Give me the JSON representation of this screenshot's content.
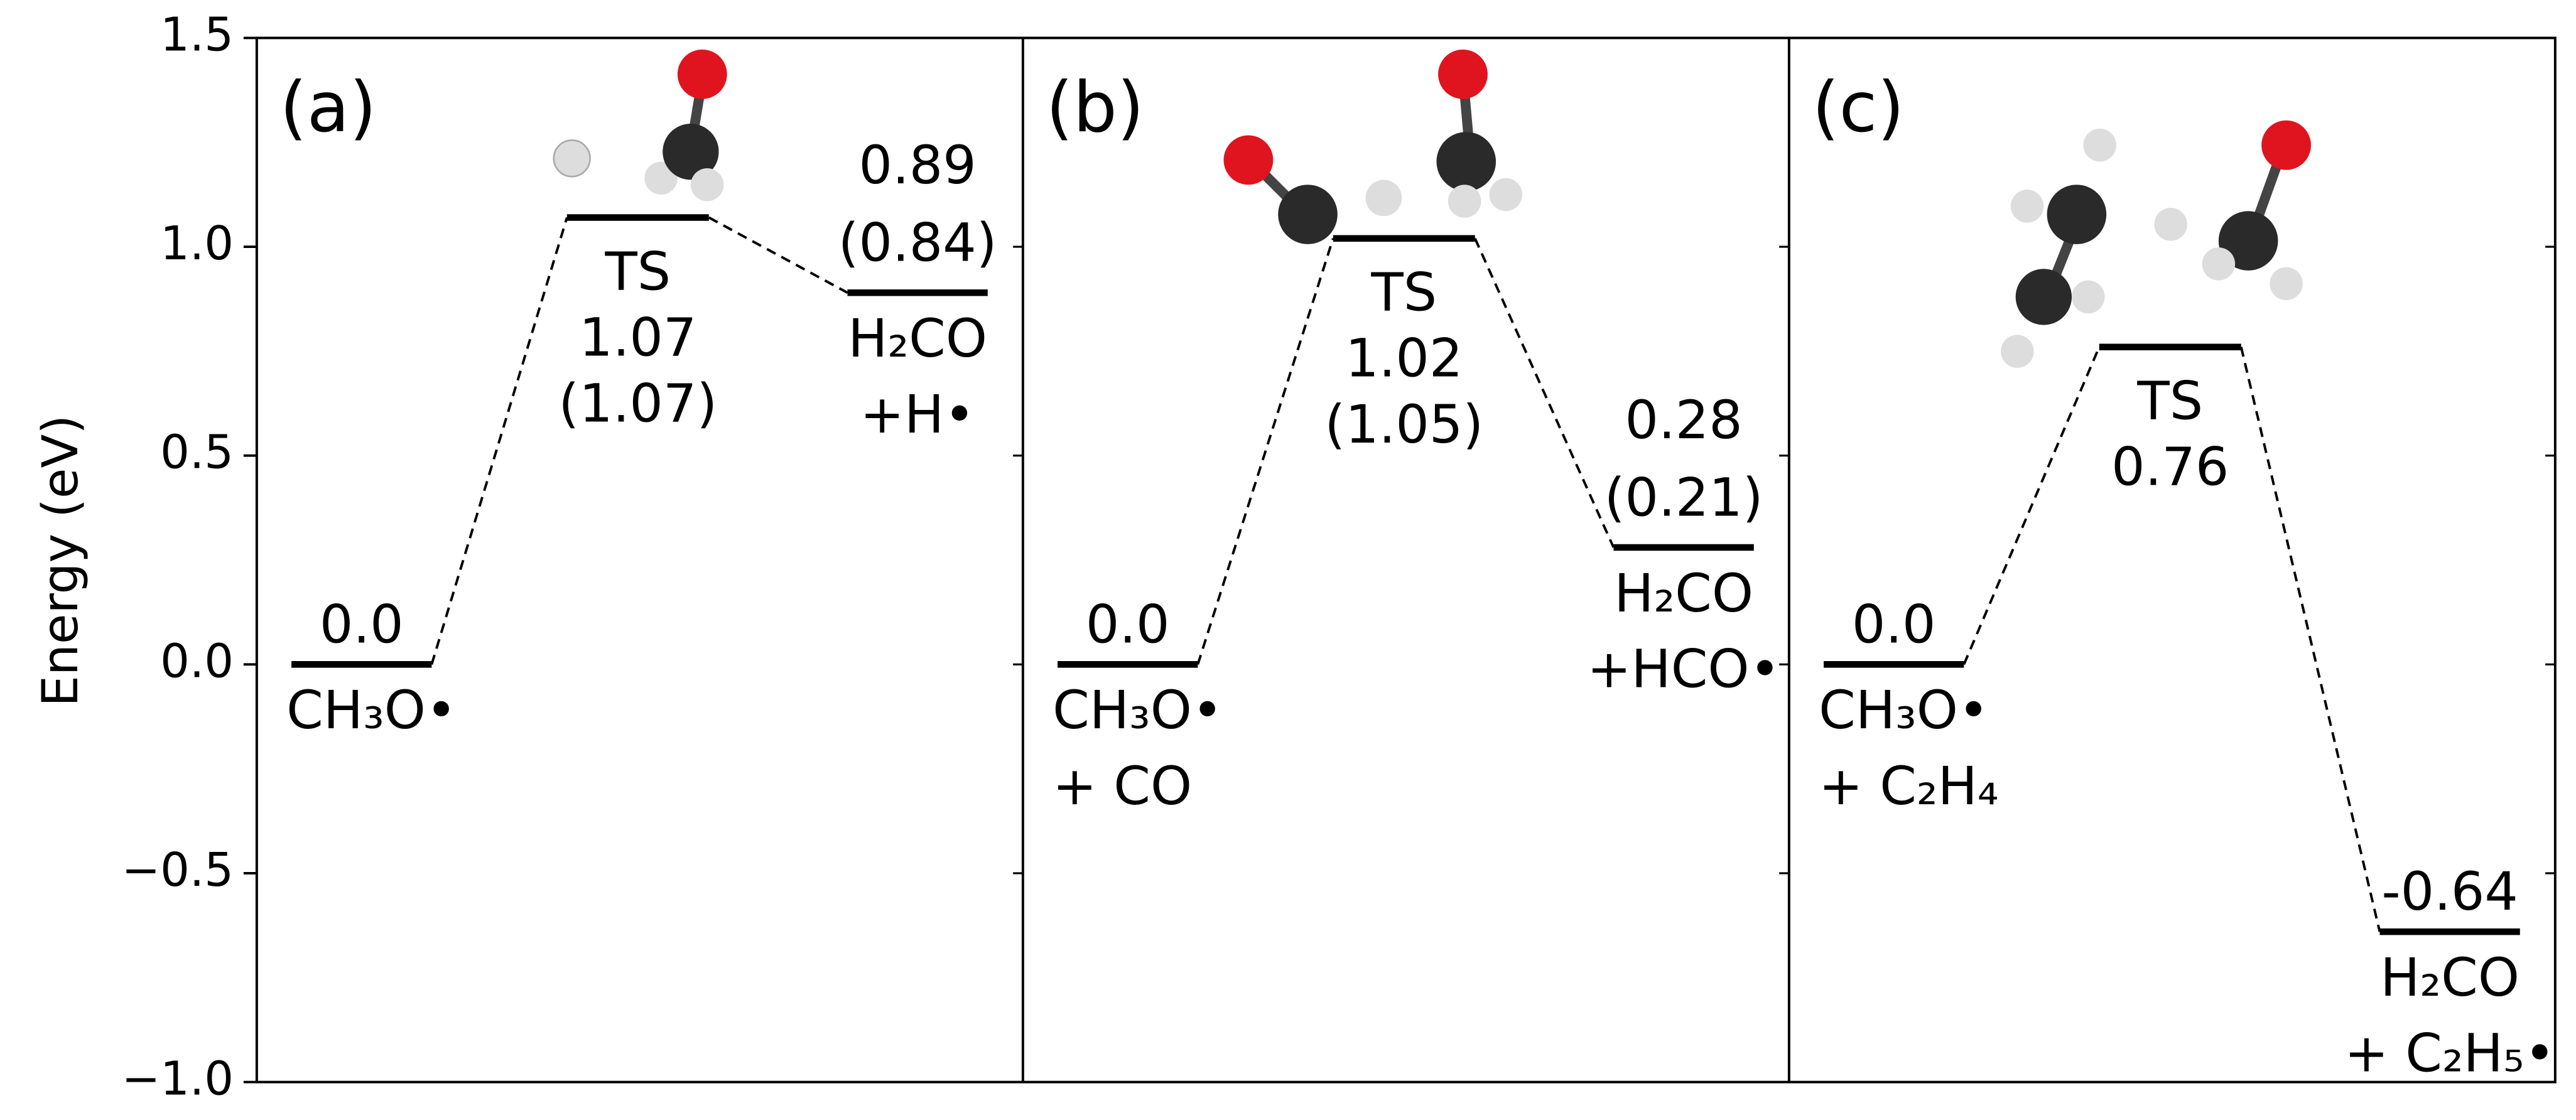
{
  "chart_data": {
    "type": "energy-diagram",
    "y_label": "Energy (eV)",
    "ylim": [
      -1.0,
      1.5
    ],
    "yticks": [
      {
        "value": -1.0,
        "label": "−1.0"
      },
      {
        "value": -0.5,
        "label": "−0.5"
      },
      {
        "value": 0,
        "label": "0.0"
      },
      0.5,
      {
        "value": 1.0,
        "label": "1.0"
      },
      {
        "value": 1.5,
        "label": "1.5"
      }
    ],
    "panels": [
      {
        "label": "(a)",
        "names": [
          [
            "CH₃O•"
          ],
          [
            "TS"
          ],
          [
            "H₂CO",
            "+H•"
          ]
        ],
        "values": [
          0,
          1.07,
          0.89
        ],
        "value_labels": [
          "0.0",
          "1.07",
          "0.89"
        ],
        "alt_values": [
          null,
          1.07,
          0.84
        ],
        "alt_value_labels": [
          null,
          "(1.07)",
          "(0.84)"
        ]
      },
      {
        "label": "(b)",
        "names": [
          [
            "CH₃O•",
            "+ CO"
          ],
          [
            "TS"
          ],
          [
            "H₂CO",
            "+HCO•"
          ]
        ],
        "values": [
          0,
          1.02,
          0.28
        ],
        "value_labels": [
          "0.0",
          "1.02",
          "0.28"
        ],
        "alt_values": [
          null,
          1.05,
          0.21
        ],
        "alt_value_labels": [
          null,
          "(1.05)",
          "(0.21)"
        ]
      },
      {
        "label": "(c)",
        "names": [
          [
            "CH₃O•",
            "+ C₂H₄"
          ],
          [
            "TS"
          ],
          [
            "H₂CO",
            "+ C₂H₅•"
          ]
        ],
        "values": [
          0,
          0.76,
          -0.64
        ],
        "value_labels": [
          "0.0",
          "0.76",
          "-0.64"
        ]
      }
    ]
  }
}
